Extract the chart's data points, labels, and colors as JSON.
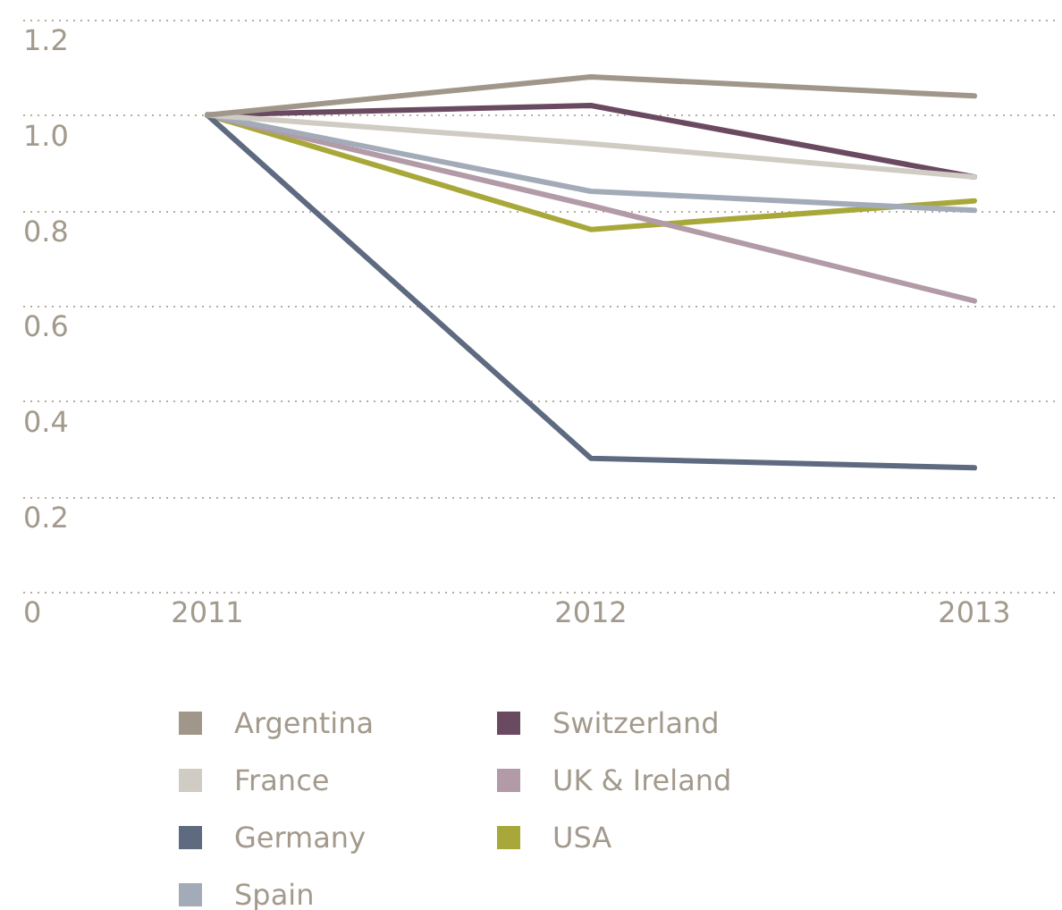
{
  "chart_data": {
    "type": "line",
    "categories": [
      "2011",
      "2012",
      "2013"
    ],
    "series": [
      {
        "name": "Argentina",
        "color": "#a0978a",
        "values": [
          1.0,
          1.08,
          1.04
        ]
      },
      {
        "name": "France",
        "color": "#d0ccc4",
        "values": [
          1.0,
          0.94,
          0.87
        ]
      },
      {
        "name": "Germany",
        "color": "#5e6a80",
        "values": [
          1.0,
          0.28,
          0.26
        ]
      },
      {
        "name": "Spain",
        "color": "#a3abb9",
        "values": [
          1.0,
          0.84,
          0.8
        ]
      },
      {
        "name": "Switzerland",
        "color": "#6a4a60",
        "values": [
          1.0,
          1.02,
          0.87
        ]
      },
      {
        "name": "UK & Ireland",
        "color": "#b29aa6",
        "values": [
          1.0,
          0.81,
          0.61
        ]
      },
      {
        "name": "USA",
        "color": "#a8a83a",
        "values": [
          1.0,
          0.76,
          0.82
        ]
      }
    ],
    "ylim": [
      0,
      1.2
    ],
    "yticks": [
      0,
      0.2,
      0.4,
      0.6,
      0.8,
      {
        "value": 1,
        "label": "1.0"
      },
      1.2
    ],
    "grid": "y",
    "legend": "bottom",
    "marker": "none",
    "line_style": "solid"
  }
}
